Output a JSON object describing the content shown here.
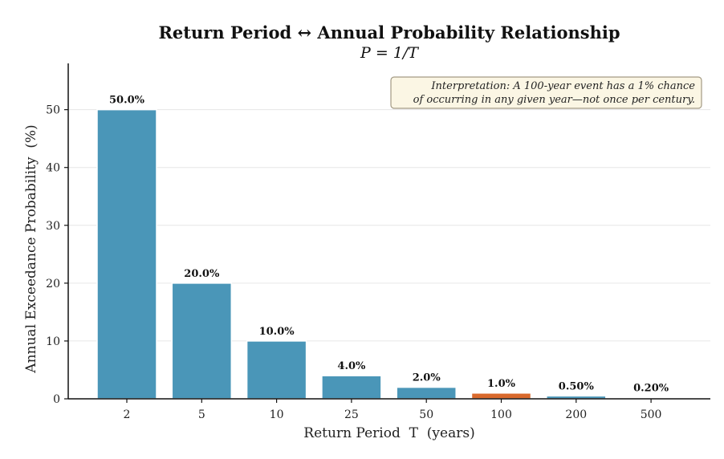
{
  "chart_data": {
    "type": "bar",
    "title": "Return Period ↔ Annual Probability Relationship",
    "subtitle": "P = 1/T",
    "xlabel": "Return Period  T  (years)",
    "ylabel": "Annual Exceedance Probability  (%)",
    "categories": [
      "2",
      "5",
      "10",
      "25",
      "50",
      "100",
      "200",
      "500"
    ],
    "values": [
      50.0,
      20.0,
      10.0,
      4.0,
      2.0,
      1.0,
      0.5,
      0.2
    ],
    "data_labels": [
      "50.0%",
      "20.0%",
      "10.0%",
      "4.0%",
      "2.0%",
      "1.0%",
      "0.50%",
      "0.20%"
    ],
    "highlight_category": "100",
    "ylim": [
      0,
      58
    ],
    "yticks": [
      0,
      10,
      20,
      30,
      40,
      50
    ],
    "grid": "horizontal",
    "colors": {
      "bar": "#4a96b8",
      "highlight": "#d9692c",
      "bar_edge": "#ffffff"
    },
    "annotation": {
      "lines": [
        "Interpretation: A 100-year event has a 1% chance",
        "of occurring in any given year—not once per century."
      ],
      "placement": "top-right",
      "background": "#fbf6e4",
      "border": "#a39a84"
    }
  }
}
